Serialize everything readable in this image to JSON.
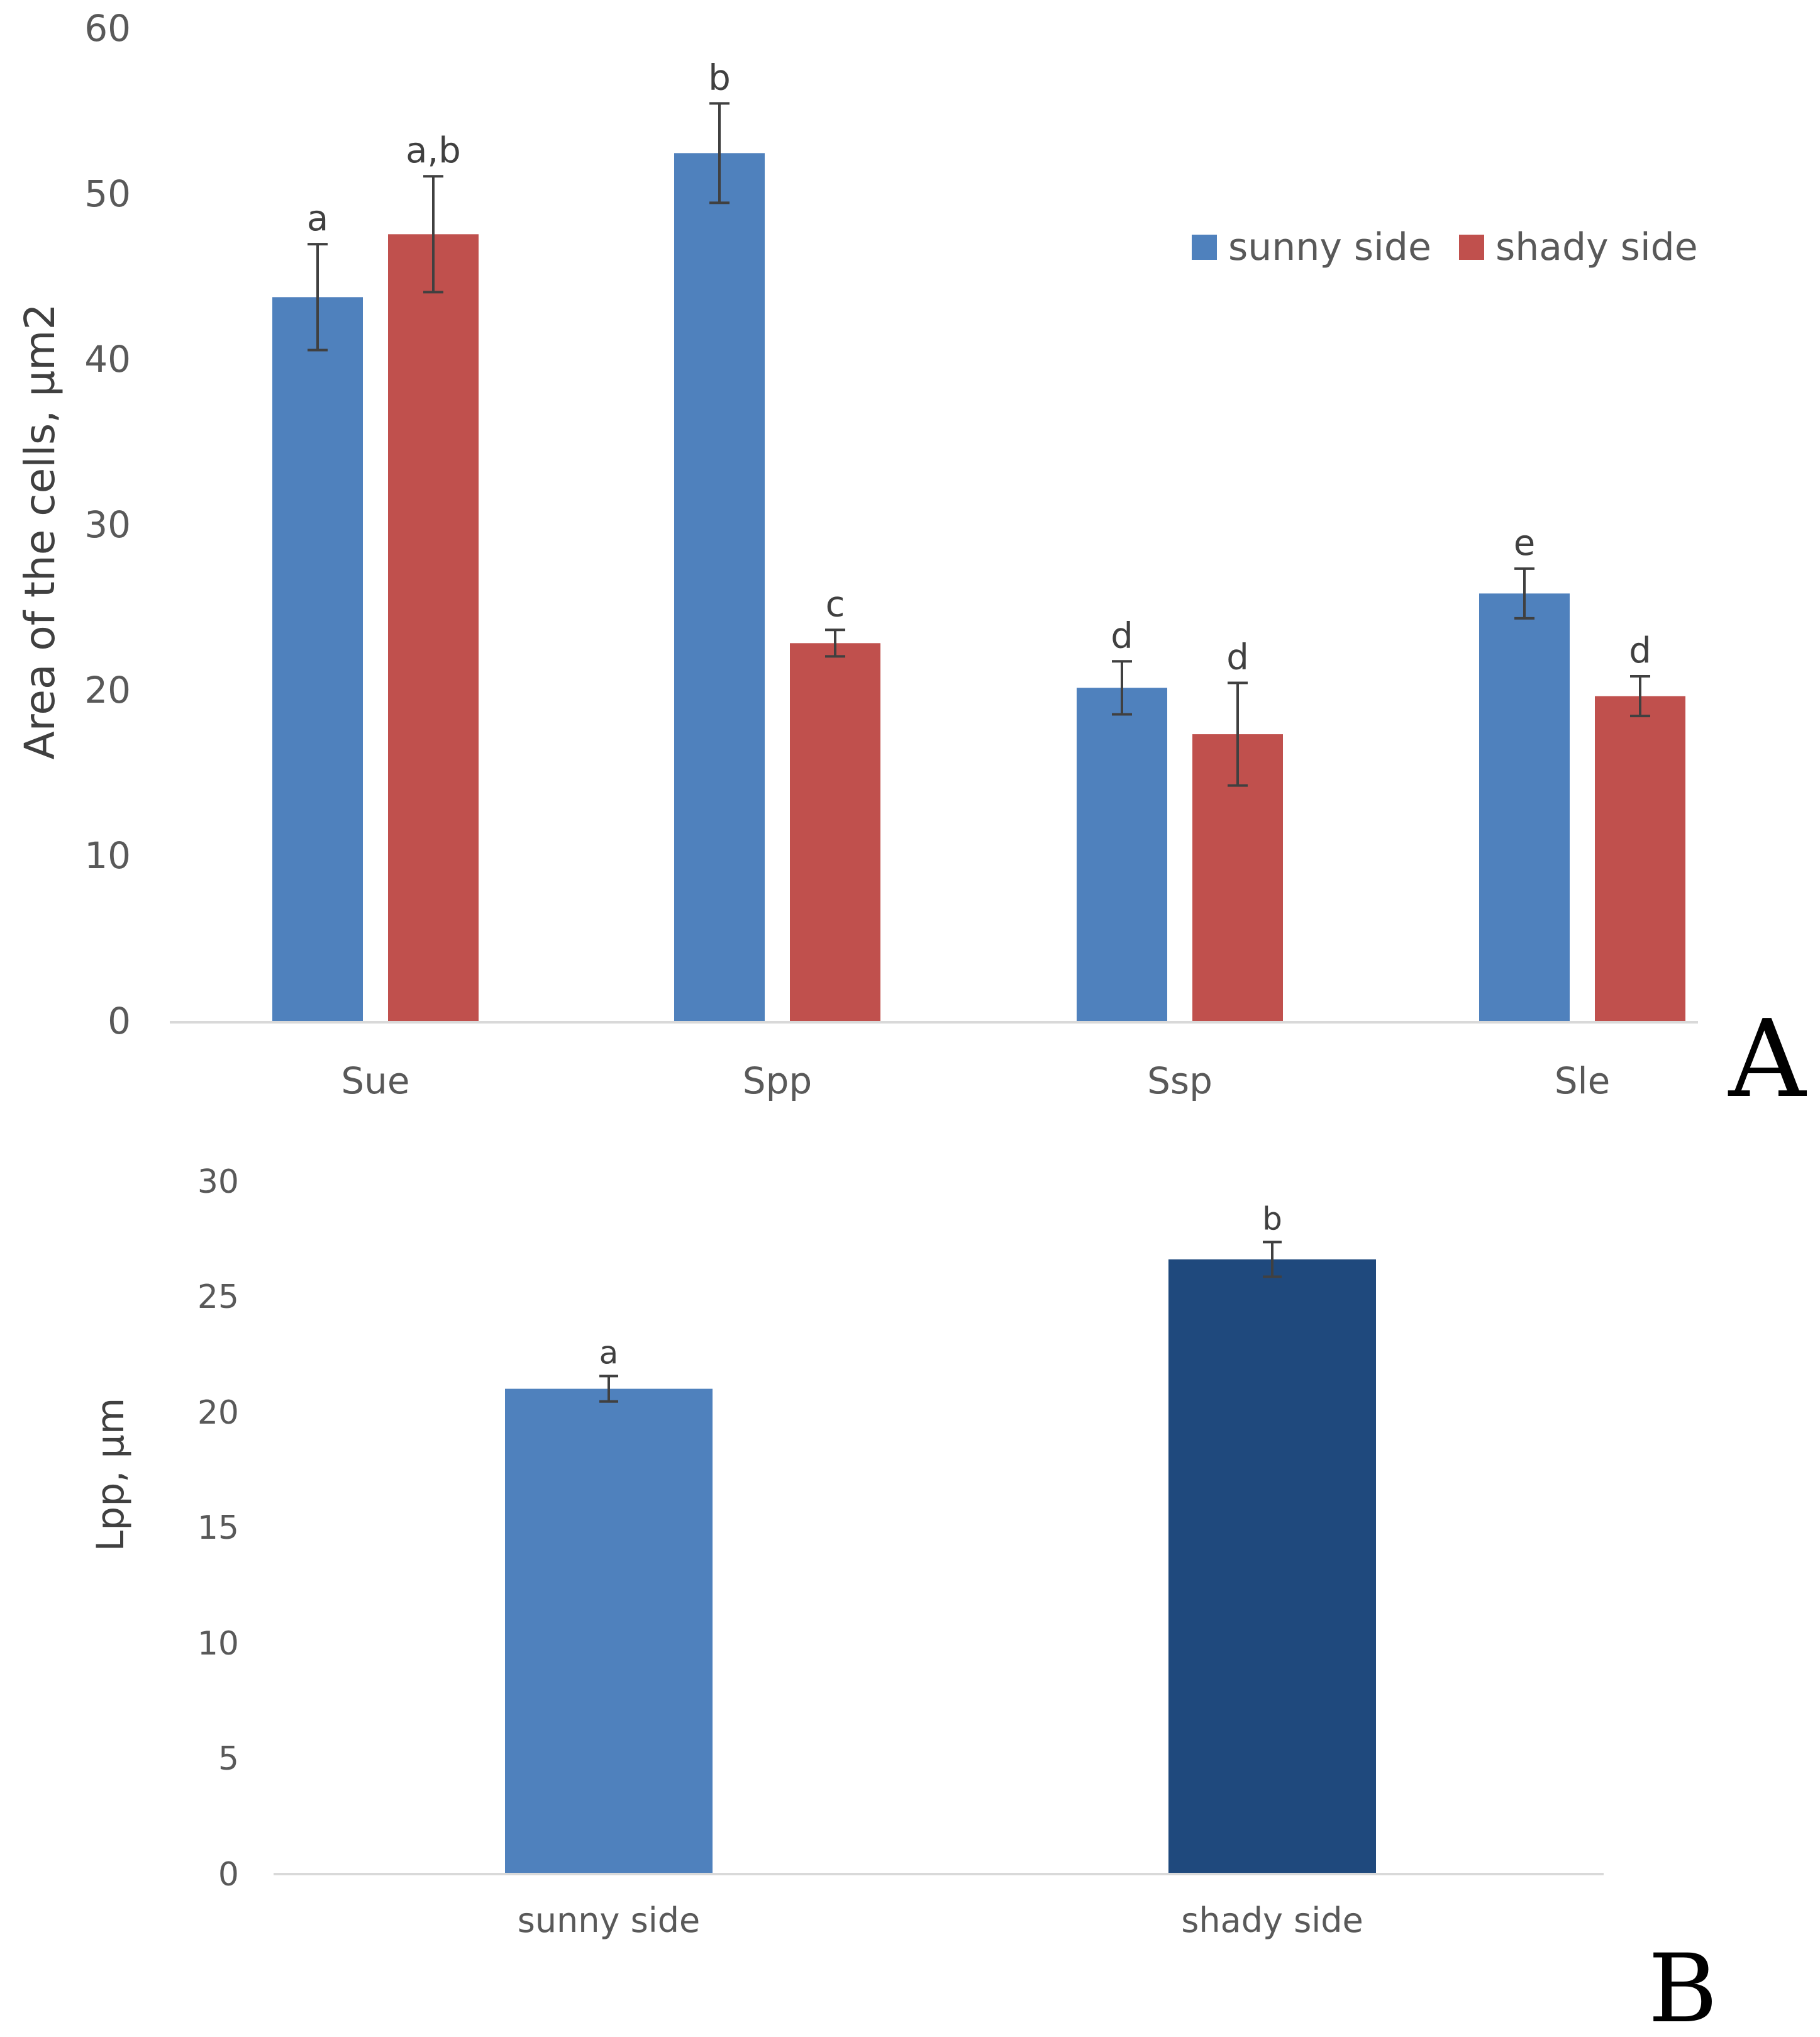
{
  "chart_data": [
    {
      "type": "bar",
      "panel_label": "A",
      "title": "",
      "xlabel": "",
      "ylabel": "Area of the cells, µm2",
      "ylim": [
        0,
        60
      ],
      "yticks": [
        "0",
        "10",
        "20",
        "30",
        "40",
        "50",
        "60"
      ],
      "categories": [
        "Sue",
        "Spp",
        "Ssp",
        "Sle"
      ],
      "legend_position": "top-right",
      "series": [
        {
          "name": "sunny side",
          "color": "#4F81BD",
          "values": [
            43.8,
            52.5,
            20.2,
            25.9
          ],
          "errors": [
            3.2,
            3.0,
            1.6,
            1.5
          ],
          "labels": [
            "a",
            "b",
            "d",
            "e"
          ]
        },
        {
          "name": "shady side",
          "color": "#C0504D",
          "values": [
            47.6,
            22.9,
            17.4,
            19.7
          ],
          "errors": [
            3.5,
            0.8,
            3.1,
            1.2
          ],
          "labels": [
            "a,b",
            "c",
            "d",
            "d"
          ]
        }
      ]
    },
    {
      "type": "bar",
      "panel_label": "B",
      "title": "",
      "xlabel": "",
      "ylabel": "Lpp, µm",
      "ylim": [
        0,
        30
      ],
      "yticks": [
        "0",
        "5",
        "10",
        "15",
        "20",
        "25",
        "30"
      ],
      "categories": [
        "sunny side",
        "shady side"
      ],
      "values": [
        21.0,
        26.6
      ],
      "errors": [
        0.55,
        0.75
      ],
      "colors": [
        "#4F81BD",
        "#1F497D"
      ],
      "labels": [
        "a",
        "b"
      ]
    }
  ]
}
